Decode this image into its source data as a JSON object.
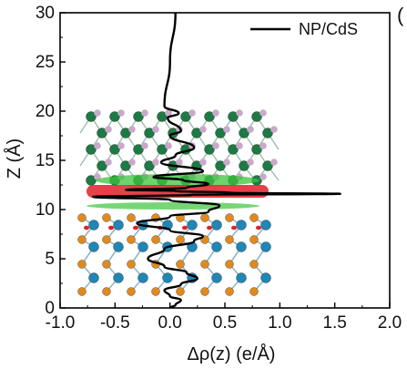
{
  "panel_letter": "(",
  "chart_data": {
    "type": "line",
    "title": "",
    "xlabel": "Δρ(z) (e/Å)",
    "ylabel": "Z (Å)",
    "xlim": [
      -1.0,
      2.0
    ],
    "ylim": [
      0,
      30
    ],
    "xticks": [
      -1.0,
      -0.5,
      0.0,
      0.5,
      1.0,
      1.5,
      2.0
    ],
    "xtick_labels": [
      "-1.0",
      "-0.5",
      "0.0",
      "0.5",
      "1.0",
      "1.5",
      "2.0"
    ],
    "yticks": [
      0,
      5,
      10,
      15,
      20,
      25,
      30
    ],
    "ytick_labels": [
      "0",
      "5",
      "10",
      "15",
      "20",
      "25",
      "30"
    ],
    "legend": {
      "position": "top-right"
    },
    "grid": false,
    "series": [
      {
        "name": "NP/CdS",
        "color": "#000000",
        "x": [
          0.05,
          0.0,
          -0.05,
          0.08,
          -0.02,
          0.1,
          0.0,
          0.22,
          0.05,
          -0.08,
          0.3,
          -0.15,
          0.12,
          0.35,
          0.15,
          -0.4,
          0.05,
          0.55,
          1.55,
          0.2,
          -0.7,
          0.0,
          0.45,
          0.35,
          0.0,
          -0.3,
          0.0,
          0.3,
          0.22,
          -0.05,
          -0.2,
          -0.05,
          0.15,
          0.25,
          0.1,
          -0.05,
          0.0,
          0.1,
          0.05,
          0.0
        ],
        "y": [
          30.0,
          25.0,
          20.5,
          19.8,
          19.3,
          18.0,
          17.5,
          16.3,
          15.5,
          14.8,
          13.9,
          13.3,
          13.0,
          12.6,
          12.2,
          12.0,
          11.9,
          11.7,
          11.6,
          11.5,
          11.3,
          11.0,
          10.4,
          9.8,
          9.3,
          8.6,
          7.9,
          7.3,
          6.8,
          6.0,
          5.0,
          4.2,
          3.6,
          3.0,
          2.4,
          1.8,
          1.2,
          0.8,
          0.3,
          0.0
        ]
      }
    ],
    "overlay": {
      "description": "atomic slab structure with charge density isosurfaces",
      "upper_layer_atom_color": "#1e7a44",
      "upper_layer_minor_color": "#c9a9c9",
      "lower_layer_atom_color": "#1f86b5",
      "lower_layer_minor_color": "#e08a1e",
      "accumulation_color": "#e0202a",
      "depletion_color": "#3cc43c"
    }
  }
}
